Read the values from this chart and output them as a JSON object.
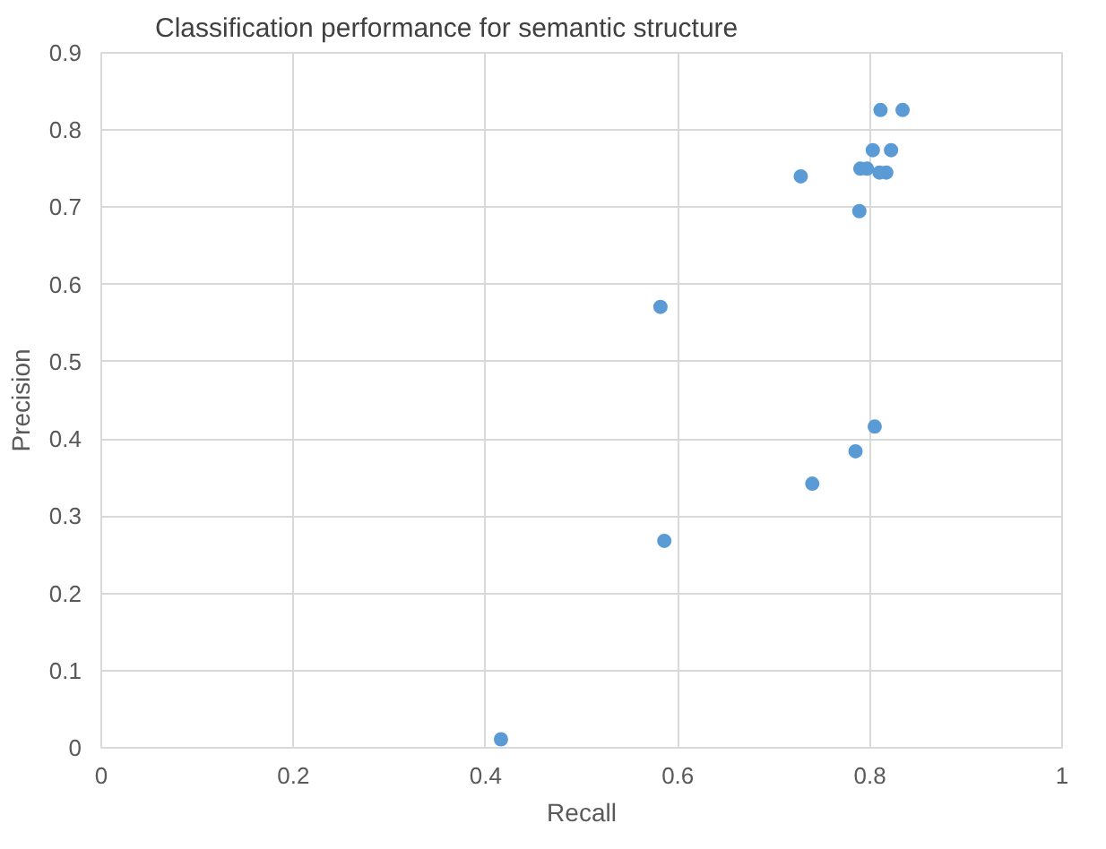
{
  "chart_data": {
    "type": "scatter",
    "title": "Classification performance for semantic structure",
    "xlabel": "Recall",
    "ylabel": "Precision",
    "x": [
      0.811,
      0.834,
      0.803,
      0.822,
      0.79,
      0.797,
      0.81,
      0.817,
      0.728,
      0.789,
      0.582,
      0.805,
      0.785,
      0.74,
      0.586,
      0.416
    ],
    "values": [
      0.826,
      0.826,
      0.774,
      0.774,
      0.75,
      0.75,
      0.745,
      0.745,
      0.74,
      0.695,
      0.571,
      0.416,
      0.384,
      0.342,
      0.268,
      0.011
    ],
    "color": "#5b9bd5",
    "marker": "circle",
    "xlim": [
      0,
      1
    ],
    "xticks": [
      0,
      0.2,
      0.4,
      0.6,
      0.8,
      1
    ],
    "ylim": [
      0,
      0.9
    ],
    "yticks": [
      0,
      0.1,
      0.2,
      0.3,
      0.4,
      0.5,
      0.6,
      0.7,
      0.8,
      0.9
    ],
    "grid": true
  }
}
